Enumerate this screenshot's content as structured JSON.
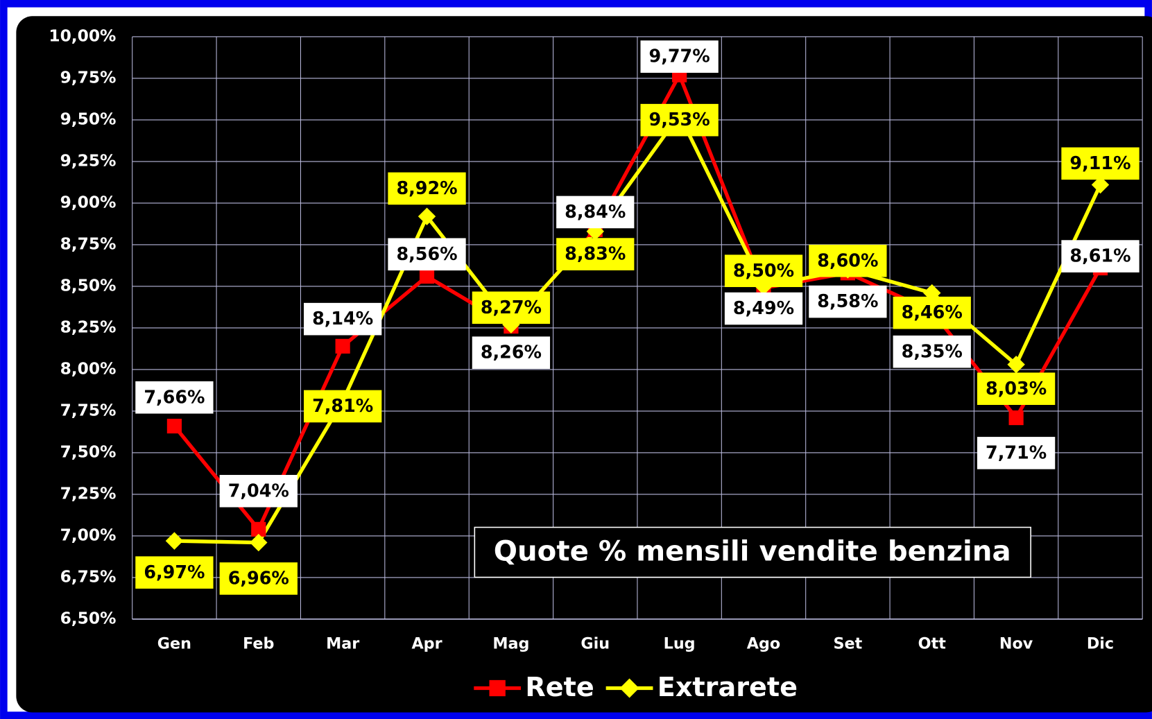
{
  "chart_data": {
    "type": "line",
    "title": "Quote % mensili vendite benzina",
    "categories": [
      "Gen",
      "Feb",
      "Mar",
      "Apr",
      "Mag",
      "Giu",
      "Lug",
      "Ago",
      "Set",
      "Ott",
      "Nov",
      "Dic"
    ],
    "series": [
      {
        "name": "Rete",
        "color": "#ff0000",
        "marker": "square",
        "values": [
          7.66,
          7.04,
          8.14,
          8.56,
          8.26,
          8.84,
          9.77,
          8.49,
          8.58,
          8.35,
          7.71,
          8.61
        ],
        "value_labels": [
          "7,66%",
          "7,04%",
          "8,14%",
          "8,56%",
          "8,26%",
          "8,84%",
          "9,77%",
          "8,49%",
          "8,58%",
          "8,35%",
          "7,71%",
          "8,61%"
        ]
      },
      {
        "name": "Extrarete",
        "color": "#ffff00",
        "marker": "diamond",
        "values": [
          6.97,
          6.96,
          7.81,
          8.92,
          8.27,
          8.83,
          9.53,
          8.5,
          8.6,
          8.46,
          8.03,
          9.11
        ],
        "value_labels": [
          "6,97%",
          "6,96%",
          "7,81%",
          "8,92%",
          "8,27%",
          "8,83%",
          "9,53%",
          "8,50%",
          "8,60%",
          "8,46%",
          "8,03%",
          "9,11%"
        ]
      }
    ],
    "ylim": [
      6.5,
      10
    ],
    "yticks": [
      {
        "value": 6.5,
        "label": "6,50%"
      },
      {
        "value": 6.75,
        "label": "6,75%"
      },
      {
        "value": 7,
        "label": "7,00%"
      },
      {
        "value": 7.25,
        "label": "7,25%"
      },
      {
        "value": 7.5,
        "label": "7,50%"
      },
      {
        "value": 7.75,
        "label": "7,75%"
      },
      {
        "value": 8,
        "label": "8,00%"
      },
      {
        "value": 8.25,
        "label": "8,25%"
      },
      {
        "value": 8.5,
        "label": "8,50%"
      },
      {
        "value": 8.75,
        "label": "8,75%"
      },
      {
        "value": 9,
        "label": "9,00%"
      },
      {
        "value": 9.25,
        "label": "9,25%"
      },
      {
        "value": 9.5,
        "label": "9,50%"
      },
      {
        "value": 9.75,
        "label": "9,75%"
      },
      {
        "value": 10,
        "label": "10,00%"
      }
    ],
    "grid": true,
    "legend": "bottom"
  }
}
